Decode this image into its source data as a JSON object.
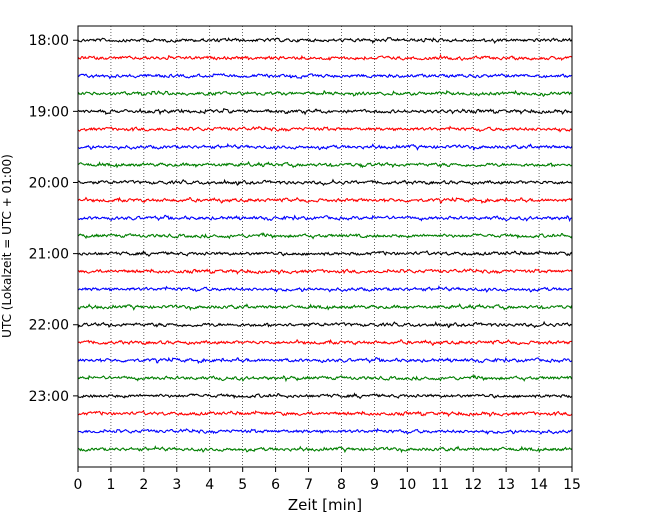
{
  "chart_data": {
    "type": "line",
    "title": "",
    "xlabel": "Zeit  [min]",
    "ylabel": "UTC (Lokalzeit = UTC + 01:00)",
    "xlim": [
      0,
      15
    ],
    "xticks": [
      0,
      1,
      2,
      3,
      4,
      5,
      6,
      7,
      8,
      9,
      10,
      11,
      12,
      13,
      14,
      15
    ],
    "x_grid": "dotted-vertical",
    "y_ticks": [
      {
        "label": "18:00",
        "hour": 18.0
      },
      {
        "label": "19:00",
        "hour": 19.0
      },
      {
        "label": "20:00",
        "hour": 20.0
      },
      {
        "label": "21:00",
        "hour": 21.0
      },
      {
        "label": "22:00",
        "hour": 22.0
      },
      {
        "label": "23:00",
        "hour": 23.0
      }
    ],
    "y_range_hours": [
      17.8,
      24.0
    ],
    "trace_interval_minutes": 15,
    "trace_start_hour": 18.0,
    "trace_count": 24,
    "trace_colors": [
      "#000000",
      "#ff0000",
      "#0000ff",
      "#007f00"
    ],
    "trace_amplitude": 1.0
  }
}
